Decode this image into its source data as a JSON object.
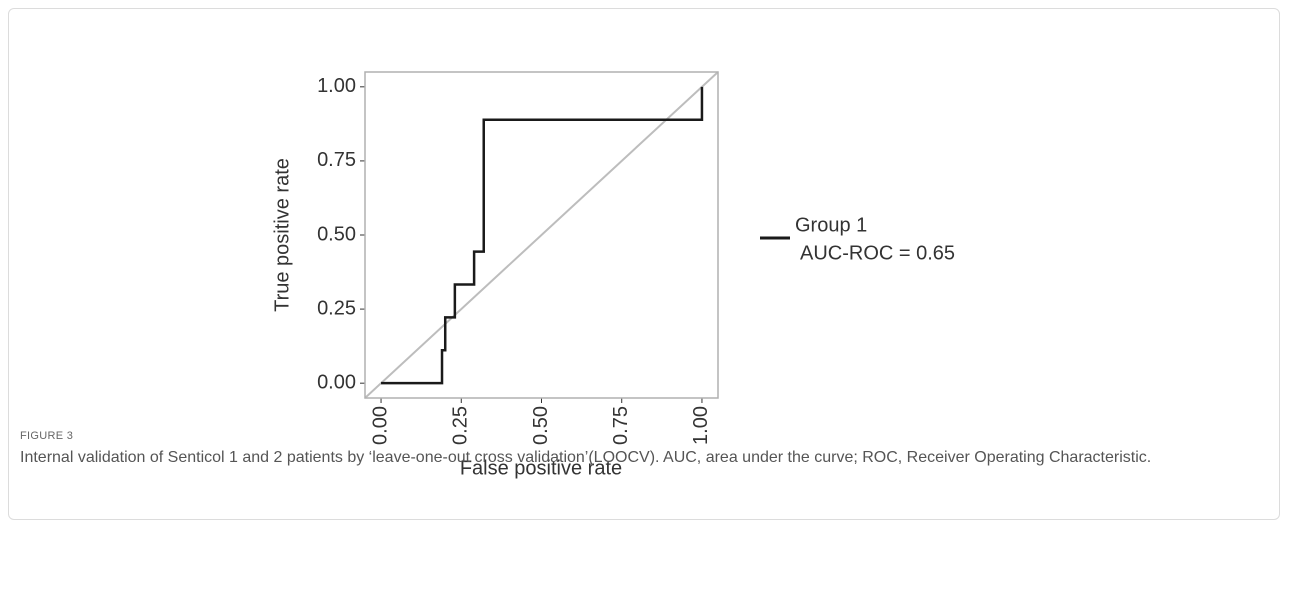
{
  "chart_data": {
    "type": "line",
    "xlabel": "False positive rate",
    "ylabel": "True positive rate",
    "xlim": [
      -0.05,
      1.05
    ],
    "ylim": [
      -0.05,
      1.05
    ],
    "xticks": [
      {
        "value": 0,
        "label": "0.00"
      },
      {
        "value": 0.25,
        "label": "0.25"
      },
      {
        "value": 0.5,
        "label": "0.50"
      },
      {
        "value": 0.75,
        "label": "0.75"
      },
      {
        "value": 1,
        "label": "1.00"
      }
    ],
    "yticks": [
      {
        "value": 0,
        "label": "0.00"
      },
      {
        "value": 0.25,
        "label": "0.25"
      },
      {
        "value": 0.5,
        "label": "0.50"
      },
      {
        "value": 0.75,
        "label": "0.75"
      },
      {
        "value": 1,
        "label": "1.00"
      }
    ],
    "grid": false,
    "reference_color": "#bdbdbd",
    "series": [
      {
        "name": "Group 1",
        "color": "#1a1a1a",
        "x": [
          0,
          0.19,
          0.19,
          0.2,
          0.2,
          0.23,
          0.23,
          0.29,
          0.29,
          0.32,
          0.32,
          1,
          1
        ],
        "values": [
          0,
          0,
          0.111,
          0.111,
          0.222,
          0.222,
          0.333,
          0.333,
          0.444,
          0.444,
          0.889,
          0.889,
          1
        ]
      }
    ],
    "legend_note": "AUC-ROC = 0.65"
  },
  "caption": {
    "label": "FIGURE 3",
    "text": "Internal validation of Senticol 1 and 2 patients by ‘leave-one-out cross validation’(LOOCV). AUC, area under the curve; ROC, Receiver Operating Characteristic."
  }
}
